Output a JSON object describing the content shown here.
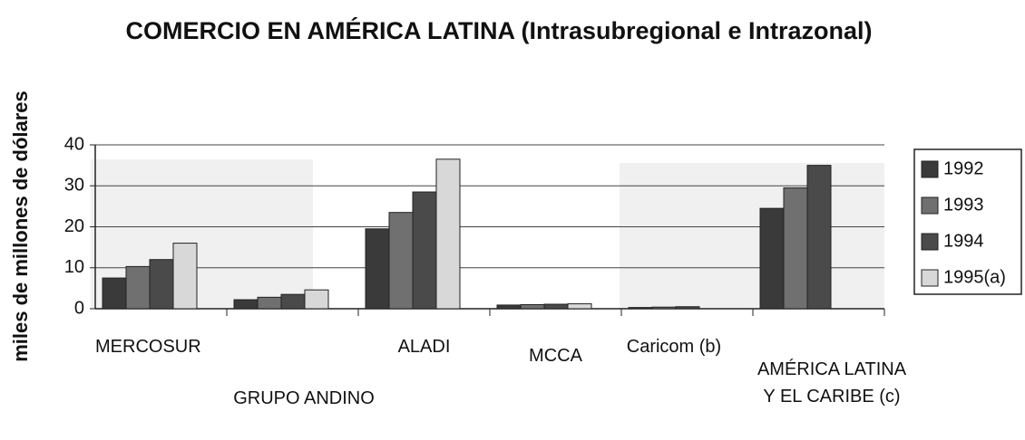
{
  "chart_data": {
    "type": "bar",
    "title": "COMERCIO EN AMÉRICA LATINA (Intrasubregional e Intrazonal)",
    "y_label": "miles de millones de dólares",
    "categories": [
      "MERCOSUR",
      "GRUPO ANDINO",
      "ALADI",
      "MCCA",
      "Caricom (b)",
      "AMÉRICA LATINA Y EL CARIBE (c)"
    ],
    "series": [
      {
        "name": "1992",
        "color": "#3a3a3a",
        "values": [
          7.5,
          2.2,
          19.5,
          0.9,
          0.3,
          24.5
        ]
      },
      {
        "name": "1993",
        "color": "#707070",
        "values": [
          10.3,
          2.8,
          23.5,
          1.0,
          0.4,
          29.5
        ]
      },
      {
        "name": "1994",
        "color": "#4a4a4a",
        "values": [
          12,
          3.5,
          28.5,
          1.1,
          0.5,
          35
        ]
      },
      {
        "name": "1995(a)",
        "color": "#d8d8d8",
        "values": [
          16,
          4.6,
          36.5,
          1.2,
          null,
          null
        ]
      }
    ],
    "ylim": [
      0,
      40
    ],
    "yticks": [
      0,
      10,
      20,
      30,
      40
    ],
    "grid": true,
    "legend": "right"
  }
}
